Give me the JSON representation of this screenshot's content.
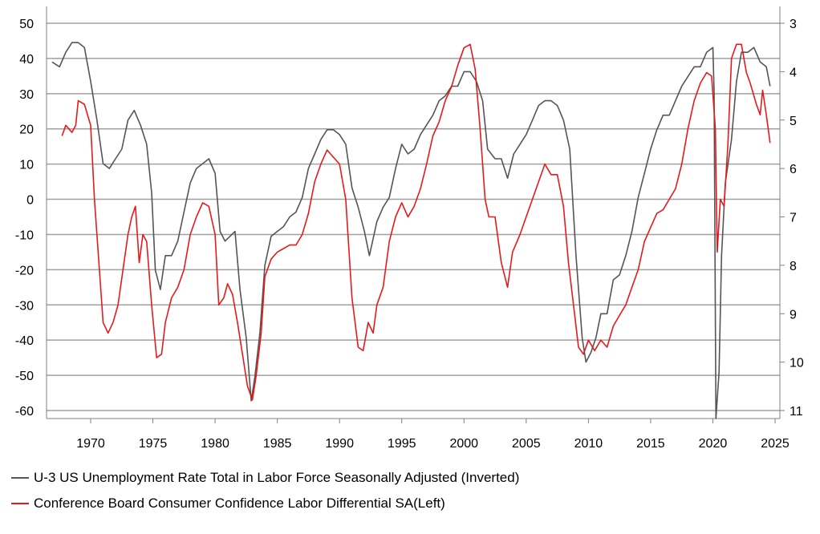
{
  "chart_data": {
    "type": "line",
    "title": "",
    "xlabel": "",
    "ylabel_left": "",
    "ylabel_right": "",
    "x_ticks": [
      "1970",
      "1975",
      "1980",
      "1985",
      "1990",
      "1995",
      "2000",
      "2005",
      "2010",
      "2015",
      "2020",
      "2025"
    ],
    "y_left": {
      "min": -63,
      "max": 50,
      "ticks": [
        "50",
        "40",
        "30",
        "20",
        "10",
        "0",
        "-10",
        "-20",
        "-30",
        "-40",
        "-50",
        "-60"
      ]
    },
    "y_right": {
      "min": 3,
      "max": 11.2,
      "inverted": true,
      "ticks": [
        "3",
        "4",
        "5",
        "6",
        "7",
        "8",
        "9",
        "10",
        "11"
      ]
    },
    "grid": "horizontal",
    "legend_position": "bottom-left",
    "series": [
      {
        "name": "U-3 US Unemployment Rate Total in Labor Force Seasonally Adjusted (Inverted)",
        "axis": "right",
        "color": "#555555",
        "points": [
          [
            1966.9,
            3.8
          ],
          [
            1967.5,
            3.9
          ],
          [
            1968.0,
            3.6
          ],
          [
            1968.5,
            3.4
          ],
          [
            1969.0,
            3.4
          ],
          [
            1969.5,
            3.5
          ],
          [
            1970.0,
            4.2
          ],
          [
            1970.5,
            5.0
          ],
          [
            1971.0,
            5.9
          ],
          [
            1971.5,
            6.0
          ],
          [
            1972.0,
            5.8
          ],
          [
            1972.5,
            5.6
          ],
          [
            1973.0,
            5.0
          ],
          [
            1973.5,
            4.8
          ],
          [
            1974.0,
            5.1
          ],
          [
            1974.5,
            5.5
          ],
          [
            1974.9,
            6.5
          ],
          [
            1975.2,
            8.1
          ],
          [
            1975.6,
            8.5
          ],
          [
            1976.0,
            7.8
          ],
          [
            1976.5,
            7.8
          ],
          [
            1977.0,
            7.5
          ],
          [
            1977.5,
            6.9
          ],
          [
            1978.0,
            6.3
          ],
          [
            1978.5,
            6.0
          ],
          [
            1979.0,
            5.9
          ],
          [
            1979.5,
            5.8
          ],
          [
            1980.0,
            6.1
          ],
          [
            1980.4,
            7.3
          ],
          [
            1980.8,
            7.5
          ],
          [
            1981.2,
            7.4
          ],
          [
            1981.6,
            7.3
          ],
          [
            1982.0,
            8.5
          ],
          [
            1982.5,
            9.5
          ],
          [
            1982.9,
            10.8
          ],
          [
            1983.2,
            10.3
          ],
          [
            1983.6,
            9.4
          ],
          [
            1984.0,
            8.0
          ],
          [
            1984.5,
            7.4
          ],
          [
            1985.0,
            7.3
          ],
          [
            1985.5,
            7.2
          ],
          [
            1986.0,
            7.0
          ],
          [
            1986.5,
            6.9
          ],
          [
            1987.0,
            6.6
          ],
          [
            1987.5,
            6.0
          ],
          [
            1988.0,
            5.7
          ],
          [
            1988.5,
            5.4
          ],
          [
            1989.0,
            5.2
          ],
          [
            1989.5,
            5.2
          ],
          [
            1990.0,
            5.3
          ],
          [
            1990.5,
            5.5
          ],
          [
            1991.0,
            6.4
          ],
          [
            1991.5,
            6.8
          ],
          [
            1992.0,
            7.3
          ],
          [
            1992.4,
            7.8
          ],
          [
            1993.0,
            7.1
          ],
          [
            1993.5,
            6.8
          ],
          [
            1994.0,
            6.6
          ],
          [
            1994.5,
            6.0
          ],
          [
            1995.0,
            5.5
          ],
          [
            1995.5,
            5.7
          ],
          [
            1996.0,
            5.6
          ],
          [
            1996.5,
            5.3
          ],
          [
            1997.0,
            5.1
          ],
          [
            1997.5,
            4.9
          ],
          [
            1998.0,
            4.6
          ],
          [
            1998.5,
            4.5
          ],
          [
            1999.0,
            4.3
          ],
          [
            1999.5,
            4.3
          ],
          [
            2000.0,
            4.0
          ],
          [
            2000.5,
            4.0
          ],
          [
            2001.0,
            4.2
          ],
          [
            2001.5,
            4.6
          ],
          [
            2001.9,
            5.6
          ],
          [
            2002.5,
            5.8
          ],
          [
            2003.0,
            5.8
          ],
          [
            2003.5,
            6.2
          ],
          [
            2004.0,
            5.7
          ],
          [
            2004.5,
            5.5
          ],
          [
            2005.0,
            5.3
          ],
          [
            2005.5,
            5.0
          ],
          [
            2006.0,
            4.7
          ],
          [
            2006.5,
            4.6
          ],
          [
            2007.0,
            4.6
          ],
          [
            2007.5,
            4.7
          ],
          [
            2008.0,
            5.0
          ],
          [
            2008.5,
            5.6
          ],
          [
            2009.0,
            7.8
          ],
          [
            2009.5,
            9.5
          ],
          [
            2009.8,
            10.0
          ],
          [
            2010.2,
            9.8
          ],
          [
            2010.6,
            9.5
          ],
          [
            2011.0,
            9.0
          ],
          [
            2011.5,
            9.0
          ],
          [
            2012.0,
            8.3
          ],
          [
            2012.5,
            8.2
          ],
          [
            2013.0,
            7.8
          ],
          [
            2013.5,
            7.3
          ],
          [
            2014.0,
            6.6
          ],
          [
            2014.5,
            6.1
          ],
          [
            2015.0,
            5.6
          ],
          [
            2015.5,
            5.2
          ],
          [
            2016.0,
            4.9
          ],
          [
            2016.5,
            4.9
          ],
          [
            2017.0,
            4.6
          ],
          [
            2017.5,
            4.3
          ],
          [
            2018.0,
            4.1
          ],
          [
            2018.5,
            3.9
          ],
          [
            2019.0,
            3.9
          ],
          [
            2019.5,
            3.6
          ],
          [
            2020.0,
            3.5
          ],
          [
            2020.1,
            4.4
          ],
          [
            2020.25,
            14.8
          ],
          [
            2020.5,
            10.2
          ],
          [
            2020.7,
            7.8
          ],
          [
            2021.0,
            6.3
          ],
          [
            2021.5,
            5.4
          ],
          [
            2021.9,
            4.2
          ],
          [
            2022.3,
            3.6
          ],
          [
            2022.8,
            3.6
          ],
          [
            2023.3,
            3.5
          ],
          [
            2023.8,
            3.8
          ],
          [
            2024.3,
            3.9
          ],
          [
            2024.6,
            4.3
          ]
        ]
      },
      {
        "name": "Conference Board Consumer Confidence Labor Differential SA(Left)",
        "axis": "left",
        "color": "#e41a1c",
        "points": [
          [
            1967.7,
            18
          ],
          [
            1968.0,
            21
          ],
          [
            1968.5,
            19
          ],
          [
            1968.8,
            21
          ],
          [
            1969.0,
            28
          ],
          [
            1969.5,
            27
          ],
          [
            1970.0,
            21
          ],
          [
            1970.3,
            0
          ],
          [
            1970.7,
            -20
          ],
          [
            1971.0,
            -35
          ],
          [
            1971.4,
            -38
          ],
          [
            1971.8,
            -35
          ],
          [
            1972.2,
            -30
          ],
          [
            1972.6,
            -20
          ],
          [
            1973.0,
            -10
          ],
          [
            1973.3,
            -5
          ],
          [
            1973.6,
            -2
          ],
          [
            1973.9,
            -18
          ],
          [
            1974.2,
            -10
          ],
          [
            1974.5,
            -12
          ],
          [
            1974.9,
            -30
          ],
          [
            1975.3,
            -45
          ],
          [
            1975.7,
            -44
          ],
          [
            1976.0,
            -35
          ],
          [
            1976.5,
            -28
          ],
          [
            1977.0,
            -25
          ],
          [
            1977.5,
            -20
          ],
          [
            1978.0,
            -10
          ],
          [
            1978.5,
            -5
          ],
          [
            1979.0,
            -1
          ],
          [
            1979.5,
            -2
          ],
          [
            1980.0,
            -10
          ],
          [
            1980.3,
            -30
          ],
          [
            1980.7,
            -28
          ],
          [
            1981.0,
            -24
          ],
          [
            1981.4,
            -27
          ],
          [
            1981.8,
            -35
          ],
          [
            1982.2,
            -44
          ],
          [
            1982.6,
            -53
          ],
          [
            1983.0,
            -57
          ],
          [
            1983.3,
            -50
          ],
          [
            1983.7,
            -38
          ],
          [
            1984.0,
            -22
          ],
          [
            1984.5,
            -17
          ],
          [
            1985.0,
            -15
          ],
          [
            1985.5,
            -14
          ],
          [
            1986.0,
            -13
          ],
          [
            1986.5,
            -13
          ],
          [
            1987.0,
            -10
          ],
          [
            1987.5,
            -4
          ],
          [
            1988.0,
            5
          ],
          [
            1988.5,
            10
          ],
          [
            1989.0,
            14
          ],
          [
            1989.5,
            12
          ],
          [
            1990.0,
            10
          ],
          [
            1990.5,
            0
          ],
          [
            1991.0,
            -28
          ],
          [
            1991.5,
            -42
          ],
          [
            1991.9,
            -43
          ],
          [
            1992.3,
            -35
          ],
          [
            1992.7,
            -38
          ],
          [
            1993.0,
            -30
          ],
          [
            1993.5,
            -25
          ],
          [
            1994.0,
            -12
          ],
          [
            1994.5,
            -5
          ],
          [
            1995.0,
            -1
          ],
          [
            1995.5,
            -5
          ],
          [
            1996.0,
            -2
          ],
          [
            1996.5,
            3
          ],
          [
            1997.0,
            10
          ],
          [
            1997.5,
            18
          ],
          [
            1998.0,
            22
          ],
          [
            1998.5,
            28
          ],
          [
            1999.0,
            32
          ],
          [
            1999.5,
            38
          ],
          [
            2000.0,
            43
          ],
          [
            2000.5,
            44
          ],
          [
            2000.9,
            37
          ],
          [
            2001.3,
            20
          ],
          [
            2001.7,
            0
          ],
          [
            2002.0,
            -5
          ],
          [
            2002.5,
            -5
          ],
          [
            2003.0,
            -18
          ],
          [
            2003.5,
            -25
          ],
          [
            2003.9,
            -15
          ],
          [
            2004.5,
            -10
          ],
          [
            2005.0,
            -5
          ],
          [
            2005.5,
            0
          ],
          [
            2006.0,
            5
          ],
          [
            2006.5,
            10
          ],
          [
            2007.0,
            7
          ],
          [
            2007.5,
            7
          ],
          [
            2008.0,
            -2
          ],
          [
            2008.4,
            -18
          ],
          [
            2008.8,
            -30
          ],
          [
            2009.2,
            -42
          ],
          [
            2009.6,
            -44
          ],
          [
            2010.0,
            -40
          ],
          [
            2010.5,
            -43
          ],
          [
            2011.0,
            -40
          ],
          [
            2011.5,
            -42
          ],
          [
            2012.0,
            -36
          ],
          [
            2012.5,
            -33
          ],
          [
            2013.0,
            -30
          ],
          [
            2013.5,
            -25
          ],
          [
            2014.0,
            -20
          ],
          [
            2014.5,
            -12
          ],
          [
            2015.0,
            -8
          ],
          [
            2015.5,
            -4
          ],
          [
            2016.0,
            -3
          ],
          [
            2016.5,
            0
          ],
          [
            2017.0,
            3
          ],
          [
            2017.5,
            10
          ],
          [
            2018.0,
            20
          ],
          [
            2018.5,
            28
          ],
          [
            2019.0,
            33
          ],
          [
            2019.5,
            36
          ],
          [
            2019.9,
            35
          ],
          [
            2020.2,
            20
          ],
          [
            2020.35,
            -15
          ],
          [
            2020.6,
            0
          ],
          [
            2020.9,
            -2
          ],
          [
            2021.2,
            15
          ],
          [
            2021.5,
            40
          ],
          [
            2021.9,
            44
          ],
          [
            2022.3,
            44
          ],
          [
            2022.7,
            36
          ],
          [
            2023.0,
            33
          ],
          [
            2023.5,
            27
          ],
          [
            2023.8,
            24
          ],
          [
            2024.0,
            31
          ],
          [
            2024.3,
            24
          ],
          [
            2024.6,
            16
          ]
        ]
      }
    ]
  }
}
